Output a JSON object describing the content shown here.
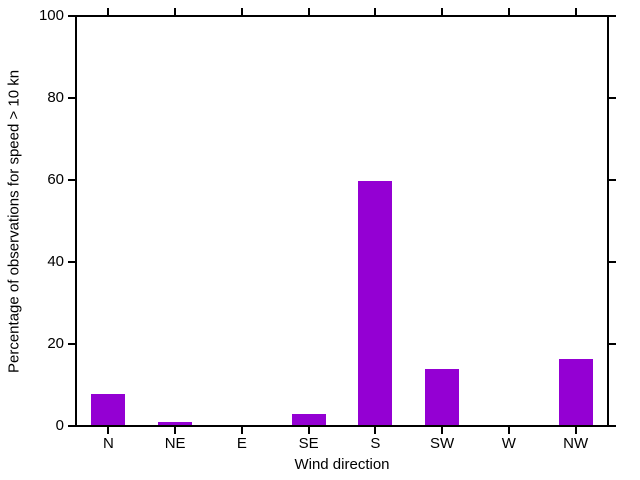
{
  "chart_data": {
    "type": "bar",
    "categories": [
      "N",
      "NE",
      "E",
      "SE",
      "S",
      "SW",
      "W",
      "NW"
    ],
    "values": [
      7.5,
      0.7,
      0,
      2.7,
      59.6,
      13.6,
      0,
      16.0
    ],
    "title": "",
    "xlabel": "Wind direction",
    "ylabel": "Percentage of observations for speed > 10 kn",
    "ylim": [
      0,
      100
    ],
    "yticks": [
      0,
      20,
      40,
      60,
      80,
      100
    ],
    "bar_color": "#9400d3",
    "axis_color": "#000000",
    "background_color": "#ffffff",
    "grid": false,
    "legend": "none",
    "tick_direction": "outward, mirrored on top and right axes"
  }
}
